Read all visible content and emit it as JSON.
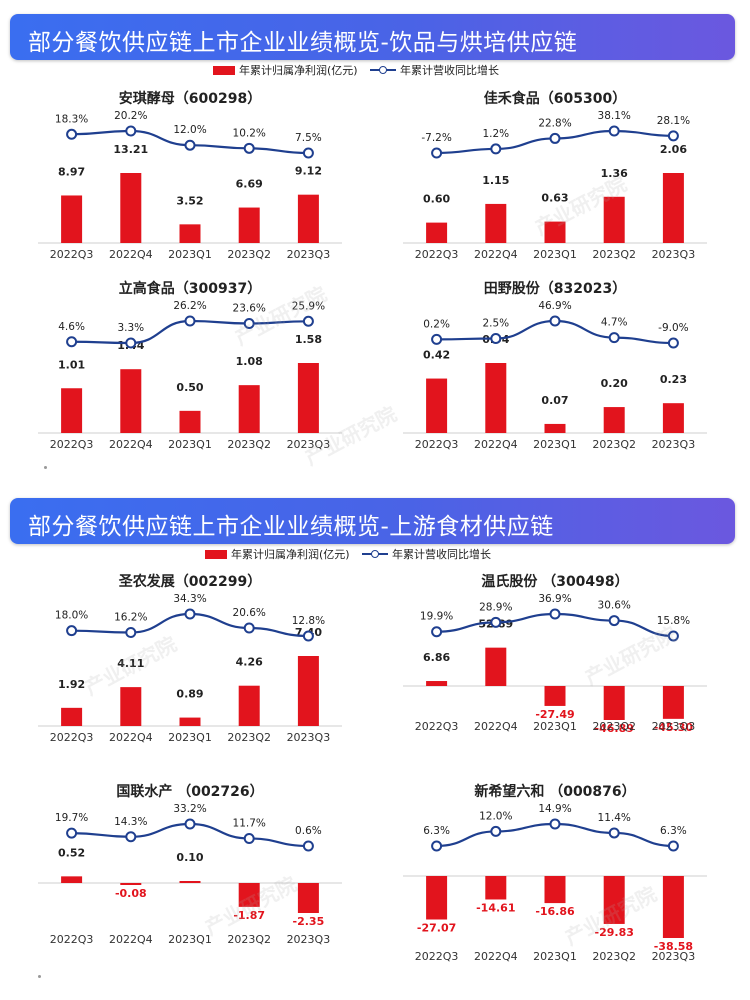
{
  "sections": [
    {
      "title": "部分餐饮供应链上市企业业绩概览-饮品与烘培供应链",
      "legend": {
        "bar": "年累计归属净利润(亿元)",
        "line": "年累计营收同比增长"
      }
    },
    {
      "title": "部分餐饮供应链上市企业业绩概览-上游食材供应链",
      "legend": {
        "bar": "年累计归属净利润(亿元)",
        "line": "年累计营收同比增长"
      }
    }
  ],
  "watermark": "产业研究院",
  "colors": {
    "bar": "#e2141d",
    "line": "#1f3f8f",
    "negative_label": "#e2141d",
    "positive_label": "#222222"
  },
  "chart_data": [
    {
      "type": "bar",
      "title": "安琪酵母（600298）",
      "categories": [
        "2022Q3",
        "2022Q4",
        "2023Q1",
        "2023Q2",
        "2023Q3"
      ],
      "series": [
        {
          "name": "年累计归属净利润(亿元)",
          "values": [
            8.97,
            13.21,
            3.52,
            6.69,
            9.12
          ],
          "labels": [
            "8.97",
            "13.21",
            "3.52",
            "6.69",
            "9.12"
          ]
        },
        {
          "name": "年累计营收同比增长",
          "values": [
            18.3,
            20.2,
            12.0,
            10.2,
            7.5
          ],
          "labels": [
            "18.3%",
            "20.2%",
            "12.0%",
            "10.2%",
            "7.5%"
          ]
        }
      ]
    },
    {
      "type": "bar",
      "title": "佳禾食品（605300）",
      "categories": [
        "2022Q3",
        "2022Q4",
        "2023Q1",
        "2023Q2",
        "2023Q3"
      ],
      "series": [
        {
          "name": "年累计归属净利润(亿元)",
          "values": [
            0.6,
            1.15,
            0.63,
            1.36,
            2.06
          ],
          "labels": [
            "0.60",
            "1.15",
            "0.63",
            "1.36",
            "2.06"
          ]
        },
        {
          "name": "年累计营收同比增长",
          "values": [
            -7.2,
            1.2,
            22.8,
            38.1,
            28.1
          ],
          "labels": [
            "-7.2%",
            "1.2%",
            "22.8%",
            "38.1%",
            "28.1%"
          ]
        }
      ]
    },
    {
      "type": "bar",
      "title": "立高食品（300937）",
      "categories": [
        "2022Q3",
        "2022Q4",
        "2023Q1",
        "2023Q2",
        "2023Q3"
      ],
      "series": [
        {
          "name": "年累计归属净利润(亿元)",
          "values": [
            1.01,
            1.44,
            0.5,
            1.08,
            1.58
          ],
          "labels": [
            "1.01",
            "1.44",
            "0.50",
            "1.08",
            "1.58"
          ]
        },
        {
          "name": "年累计营收同比增长",
          "values": [
            4.6,
            3.3,
            26.2,
            23.6,
            25.9
          ],
          "labels": [
            "4.6%",
            "3.3%",
            "26.2%",
            "23.6%",
            "25.9%"
          ]
        }
      ]
    },
    {
      "type": "bar",
      "title": "田野股份（832023）",
      "categories": [
        "2022Q3",
        "2022Q4",
        "2023Q1",
        "2023Q2",
        "2023Q3"
      ],
      "series": [
        {
          "name": "年累计归属净利润(亿元)",
          "values": [
            0.42,
            0.54,
            0.07,
            0.2,
            0.23
          ],
          "labels": [
            "0.42",
            "0.54",
            "0.07",
            "0.20",
            "0.23"
          ]
        },
        {
          "name": "年累计营收同比增长",
          "values": [
            0.2,
            2.5,
            46.9,
            4.7,
            -9.0
          ],
          "labels": [
            "0.2%",
            "2.5%",
            "46.9%",
            "4.7%",
            "-9.0%"
          ]
        }
      ]
    },
    {
      "type": "bar",
      "title": "圣农发展（002299）",
      "categories": [
        "2022Q3",
        "2022Q4",
        "2023Q1",
        "2023Q2",
        "2023Q3"
      ],
      "series": [
        {
          "name": "年累计归属净利润(亿元)",
          "values": [
            1.92,
            4.11,
            0.89,
            4.26,
            7.4
          ],
          "labels": [
            "1.92",
            "4.11",
            "0.89",
            "4.26",
            "7.40"
          ]
        },
        {
          "name": "年累计营收同比增长",
          "values": [
            18.0,
            16.2,
            34.3,
            20.6,
            12.8
          ],
          "labels": [
            "18.0%",
            "16.2%",
            "34.3%",
            "20.6%",
            "12.8%"
          ]
        }
      ]
    },
    {
      "type": "bar",
      "title": "温氏股份 （300498）",
      "categories": [
        "2022Q3",
        "2022Q4",
        "2023Q1",
        "2023Q2",
        "2023Q3"
      ],
      "series": [
        {
          "name": "年累计归属净利润(亿元)",
          "values": [
            6.86,
            52.89,
            -27.49,
            -46.89,
            -45.3
          ],
          "labels": [
            "6.86",
            "52.89",
            "-27.49",
            "-46.89",
            "-45.30"
          ]
        },
        {
          "name": "年累计营收同比增长",
          "values": [
            19.9,
            28.9,
            36.9,
            30.6,
            15.8
          ],
          "labels": [
            "19.9%",
            "28.9%",
            "36.9%",
            "30.6%",
            "15.8%"
          ]
        }
      ]
    },
    {
      "type": "bar",
      "title": "国联水产 （002726）",
      "categories": [
        "2022Q3",
        "2022Q4",
        "2023Q1",
        "2023Q2",
        "2023Q3"
      ],
      "series": [
        {
          "name": "年累计归属净利润(亿元)",
          "values": [
            0.52,
            -0.08,
            0.1,
            -1.87,
            -2.35
          ],
          "labels": [
            "0.52",
            "-0.08",
            "0.10",
            "-1.87",
            "-2.35"
          ]
        },
        {
          "name": "年累计营收同比增长",
          "values": [
            19.7,
            14.3,
            33.2,
            11.7,
            0.6
          ],
          "labels": [
            "19.7%",
            "14.3%",
            "33.2%",
            "11.7%",
            "0.6%"
          ]
        }
      ]
    },
    {
      "type": "bar",
      "title": "新希望六和 （000876）",
      "categories": [
        "2022Q3",
        "2022Q4",
        "2023Q1",
        "2023Q2",
        "2023Q3"
      ],
      "series": [
        {
          "name": "年累计归属净利润(亿元)",
          "values": [
            -27.07,
            -14.61,
            -16.86,
            -29.83,
            -38.58
          ],
          "labels": [
            "-27.07",
            "-14.61",
            "-16.86",
            "-29.83",
            "-38.58"
          ]
        },
        {
          "name": "年累计营收同比增长",
          "values": [
            6.3,
            12.0,
            14.9,
            11.4,
            6.3
          ],
          "labels": [
            "6.3%",
            "12.0%",
            "14.9%",
            "11.4%",
            "6.3%"
          ]
        }
      ]
    }
  ]
}
